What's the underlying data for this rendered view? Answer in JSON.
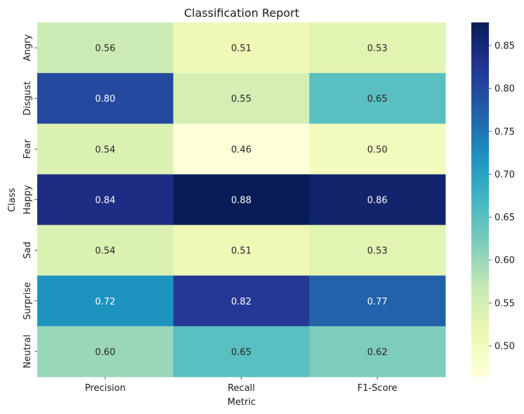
{
  "chart_data": {
    "type": "heatmap",
    "title": "Classification Report",
    "xlabel": "Metric",
    "ylabel": "Class",
    "columns": [
      "Precision",
      "Recall",
      "F1-Score"
    ],
    "rows": [
      "Angry",
      "Disgust",
      "Fear",
      "Happy",
      "Sad",
      "Surprise",
      "Neutral"
    ],
    "values": [
      [
        0.56,
        0.51,
        0.53
      ],
      [
        0.8,
        0.55,
        0.65
      ],
      [
        0.54,
        0.46,
        0.5
      ],
      [
        0.84,
        0.88,
        0.86
      ],
      [
        0.54,
        0.51,
        0.53
      ],
      [
        0.72,
        0.82,
        0.77
      ],
      [
        0.6,
        0.65,
        0.62
      ]
    ],
    "value_labels": [
      [
        "0.56",
        "0.51",
        "0.53"
      ],
      [
        "0.80",
        "0.55",
        "0.65"
      ],
      [
        "0.54",
        "0.46",
        "0.50"
      ],
      [
        "0.84",
        "0.88",
        "0.86"
      ],
      [
        "0.54",
        "0.51",
        "0.53"
      ],
      [
        "0.72",
        "0.82",
        "0.77"
      ],
      [
        "0.60",
        "0.65",
        "0.62"
      ]
    ],
    "colorbar": {
      "colormap": "YlGnBu",
      "range": [
        0.464,
        0.877
      ],
      "ticks": [
        0.5,
        0.55,
        0.6,
        0.65,
        0.7,
        0.75,
        0.8,
        0.85
      ],
      "tick_labels": [
        "0.50",
        "0.55",
        "0.60",
        "0.65",
        "0.70",
        "0.75",
        "0.80",
        "0.85"
      ]
    }
  }
}
